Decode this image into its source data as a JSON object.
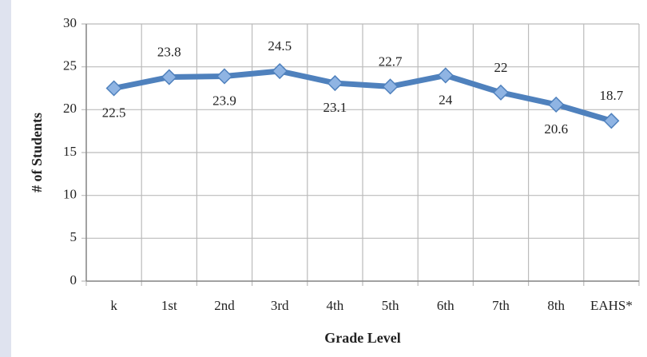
{
  "chart_data": {
    "type": "line",
    "categories": [
      "k",
      "1st",
      "2nd",
      "3rd",
      "4th",
      "5th",
      "6th",
      "7th",
      "8th",
      "EAHS*"
    ],
    "series": [
      {
        "name": "# of Students",
        "color": "#4f81bd",
        "values": [
          22.5,
          23.8,
          23.9,
          24.5,
          23.1,
          22.7,
          24,
          22,
          20.6,
          18.7
        ]
      }
    ],
    "ylim": [
      0,
      30
    ],
    "yticks": [
      0,
      5,
      10,
      15,
      20,
      25,
      30
    ],
    "grid": true,
    "xlabel": "Grade Level",
    "ylabel": "# of Students"
  }
}
